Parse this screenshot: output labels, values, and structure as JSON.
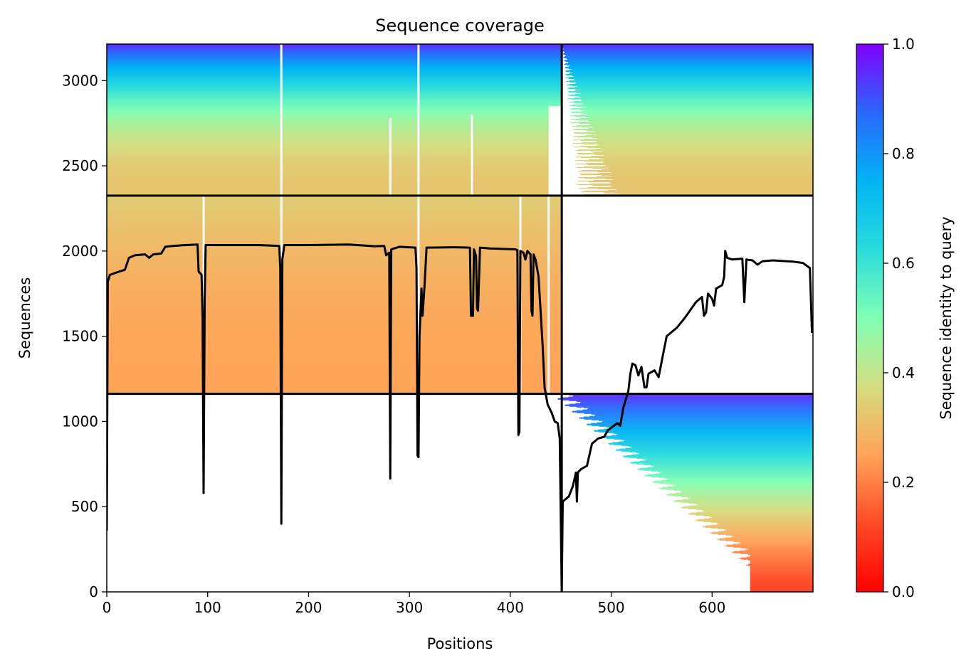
{
  "chart_data": {
    "type": "heatmap",
    "title": "Sequence coverage",
    "xlabel": "Positions",
    "ylabel": "Sequences",
    "xlim": [
      0,
      700
    ],
    "ylim": [
      0,
      3214
    ],
    "x_ticks": [
      0,
      100,
      200,
      300,
      400,
      500,
      600
    ],
    "y_ticks": [
      0,
      500,
      1000,
      1500,
      2000,
      2500,
      3000
    ],
    "colorbar": {
      "label": "Sequence identity to query",
      "range": [
        0.0,
        1.0
      ],
      "ticks": [
        "0.0",
        "0.2",
        "0.4",
        "0.6",
        "0.8",
        "1.0"
      ],
      "colormap": "rainbow_r"
    },
    "grid": false,
    "block_boundaries": {
      "x": [
        451
      ],
      "y": [
        1162,
        2325
      ]
    },
    "blocks": [
      {
        "x": [
          0,
          451
        ],
        "y": [
          2325,
          3214
        ],
        "identity": [
          0.32,
          0.95
        ],
        "fill": "full"
      },
      {
        "x": [
          451,
          700
        ],
        "y": [
          2325,
          3214
        ],
        "identity": [
          0.32,
          0.95
        ],
        "fill": "partial-left-gaps"
      },
      {
        "x": [
          0,
          451
        ],
        "y": [
          1162,
          2325
        ],
        "identity": [
          0.25,
          0.34
        ],
        "fill": "full"
      },
      {
        "x": [
          451,
          700
        ],
        "y": [
          1162,
          2325
        ],
        "identity": null,
        "fill": "empty"
      },
      {
        "x": [
          0,
          451
        ],
        "y": [
          0,
          1162
        ],
        "identity": null,
        "fill": "empty"
      },
      {
        "x": [
          451,
          700
        ],
        "y": [
          0,
          1162
        ],
        "identity": [
          0.1,
          0.95
        ],
        "fill": "staircase-right"
      }
    ],
    "coverage_line": {
      "name": "coverage",
      "color": "#000000",
      "points": [
        [
          0,
          360
        ],
        [
          1,
          1820
        ],
        [
          3,
          1860
        ],
        [
          10,
          1875
        ],
        [
          18,
          1890
        ],
        [
          22,
          1960
        ],
        [
          28,
          1975
        ],
        [
          38,
          1980
        ],
        [
          42,
          1960
        ],
        [
          46,
          1980
        ],
        [
          54,
          1985
        ],
        [
          58,
          2025
        ],
        [
          65,
          2030
        ],
        [
          78,
          2035
        ],
        [
          90,
          2038
        ],
        [
          91,
          1880
        ],
        [
          94,
          1860
        ],
        [
          95,
          1600
        ],
        [
          96,
          580
        ],
        [
          97,
          1700
        ],
        [
          98,
          2035
        ],
        [
          120,
          2035
        ],
        [
          150,
          2035
        ],
        [
          171,
          2030
        ],
        [
          172,
          1900
        ],
        [
          173,
          400
        ],
        [
          174,
          1950
        ],
        [
          176,
          2035
        ],
        [
          200,
          2035
        ],
        [
          240,
          2038
        ],
        [
          265,
          2028
        ],
        [
          275,
          2030
        ],
        [
          277,
          1975
        ],
        [
          280,
          1990
        ],
        [
          281,
          665
        ],
        [
          282,
          2010
        ],
        [
          290,
          2025
        ],
        [
          306,
          2020
        ],
        [
          307,
          1900
        ],
        [
          308,
          800
        ],
        [
          309,
          790
        ],
        [
          310,
          1500
        ],
        [
          312,
          1780
        ],
        [
          313,
          1620
        ],
        [
          315,
          1800
        ],
        [
          317,
          2020
        ],
        [
          345,
          2022
        ],
        [
          360,
          2020
        ],
        [
          361,
          1620
        ],
        [
          363,
          1620
        ],
        [
          364,
          2010
        ],
        [
          366,
          1970
        ],
        [
          367,
          1660
        ],
        [
          368,
          1650
        ],
        [
          370,
          2020
        ],
        [
          380,
          2015
        ],
        [
          395,
          2012
        ],
        [
          405,
          2010
        ],
        [
          407,
          2005
        ],
        [
          408,
          920
        ],
        [
          409,
          940
        ],
        [
          410,
          2000
        ],
        [
          413,
          1990
        ],
        [
          415,
          1950
        ],
        [
          417,
          2000
        ],
        [
          420,
          1980
        ],
        [
          421,
          1650
        ],
        [
          422,
          1620
        ],
        [
          423,
          1980
        ],
        [
          425,
          1950
        ],
        [
          428,
          1850
        ],
        [
          432,
          1450
        ],
        [
          434,
          1200
        ],
        [
          437,
          1100
        ],
        [
          441,
          1050
        ],
        [
          444,
          1000
        ],
        [
          447,
          990
        ],
        [
          449,
          900
        ],
        [
          451,
          0
        ],
        [
          452,
          530
        ],
        [
          458,
          560
        ],
        [
          462,
          620
        ],
        [
          465,
          700
        ],
        [
          466,
          530
        ],
        [
          467,
          700
        ],
        [
          470,
          720
        ],
        [
          476,
          740
        ],
        [
          481,
          870
        ],
        [
          487,
          900
        ],
        [
          493,
          910
        ],
        [
          497,
          950
        ],
        [
          506,
          990
        ],
        [
          509,
          975
        ],
        [
          512,
          1080
        ],
        [
          517,
          1180
        ],
        [
          519,
          1280
        ],
        [
          521,
          1340
        ],
        [
          524,
          1330
        ],
        [
          527,
          1270
        ],
        [
          530,
          1320
        ],
        [
          533,
          1200
        ],
        [
          535,
          1200
        ],
        [
          537,
          1280
        ],
        [
          543,
          1300
        ],
        [
          547,
          1260
        ],
        [
          551,
          1380
        ],
        [
          555,
          1500
        ],
        [
          565,
          1550
        ],
        [
          572,
          1600
        ],
        [
          578,
          1650
        ],
        [
          584,
          1700
        ],
        [
          590,
          1730
        ],
        [
          592,
          1620
        ],
        [
          594,
          1640
        ],
        [
          596,
          1750
        ],
        [
          600,
          1720
        ],
        [
          602,
          1680
        ],
        [
          604,
          1780
        ],
        [
          610,
          1800
        ],
        [
          612,
          1850
        ],
        [
          613,
          2000
        ],
        [
          615,
          1960
        ],
        [
          620,
          1950
        ],
        [
          630,
          1955
        ],
        [
          632,
          1700
        ],
        [
          634,
          1950
        ],
        [
          640,
          1945
        ],
        [
          645,
          1920
        ],
        [
          650,
          1940
        ],
        [
          660,
          1945
        ],
        [
          680,
          1938
        ],
        [
          690,
          1930
        ],
        [
          697,
          1900
        ],
        [
          699,
          1520
        ]
      ]
    }
  }
}
